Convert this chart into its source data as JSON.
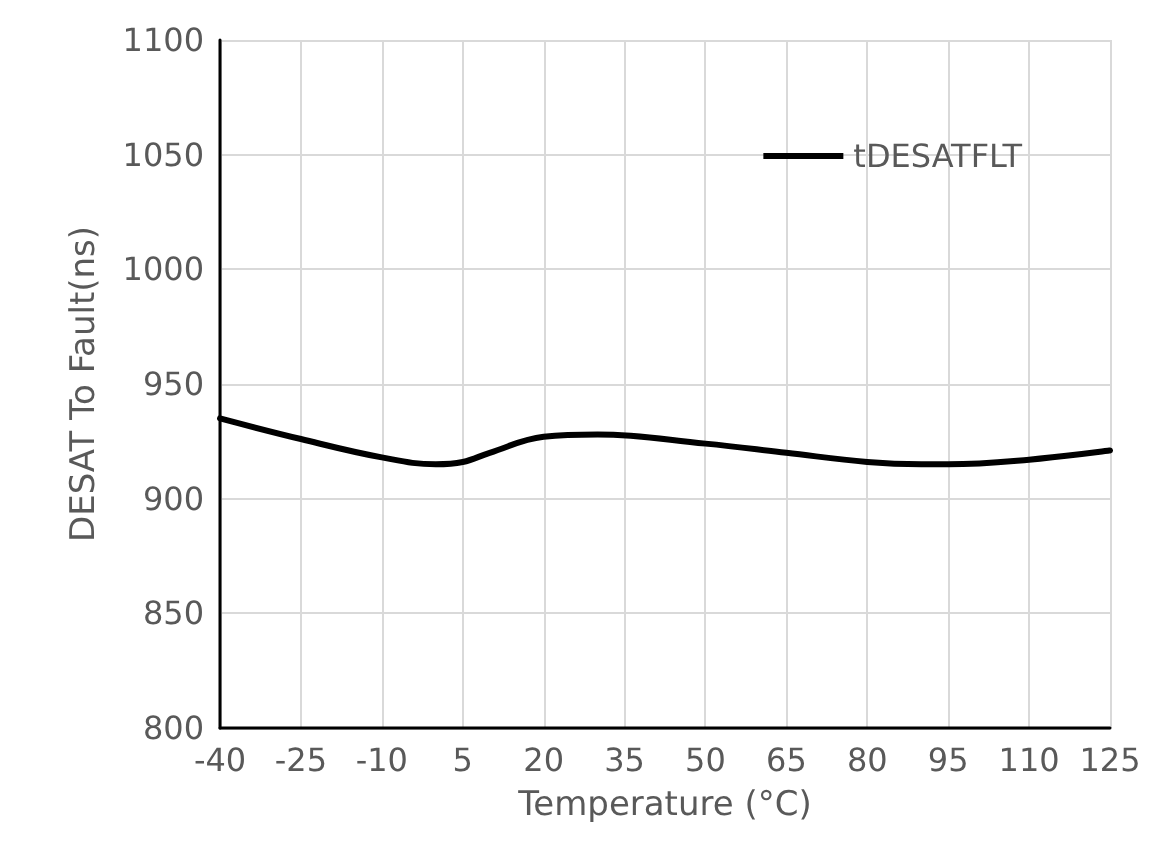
{
  "chart_data": {
    "type": "line",
    "xlabel": "Temperature (°C)",
    "ylabel": "DESAT To Fault(ns)",
    "x": [
      -40,
      -25,
      -10,
      0,
      5,
      10,
      20,
      30,
      50,
      65,
      80,
      90,
      95,
      110,
      125
    ],
    "series": [
      {
        "name": "tDESATFLT",
        "color": "#000000",
        "values": [
          935,
          926,
          918,
          915,
          916,
          920,
          927,
          928,
          924,
          920,
          916,
          915,
          915,
          917,
          921
        ]
      }
    ],
    "xlim": [
      -40,
      125
    ],
    "xticks": [
      -40,
      -25,
      -10,
      5,
      20,
      35,
      50,
      65,
      80,
      95,
      110,
      125
    ],
    "ylim": [
      800,
      1100
    ],
    "yticks": [
      800,
      850,
      900,
      950,
      1000,
      1050,
      1100
    ],
    "grid": true,
    "legend": "top right",
    "marker": "none",
    "line_style": "solid"
  }
}
